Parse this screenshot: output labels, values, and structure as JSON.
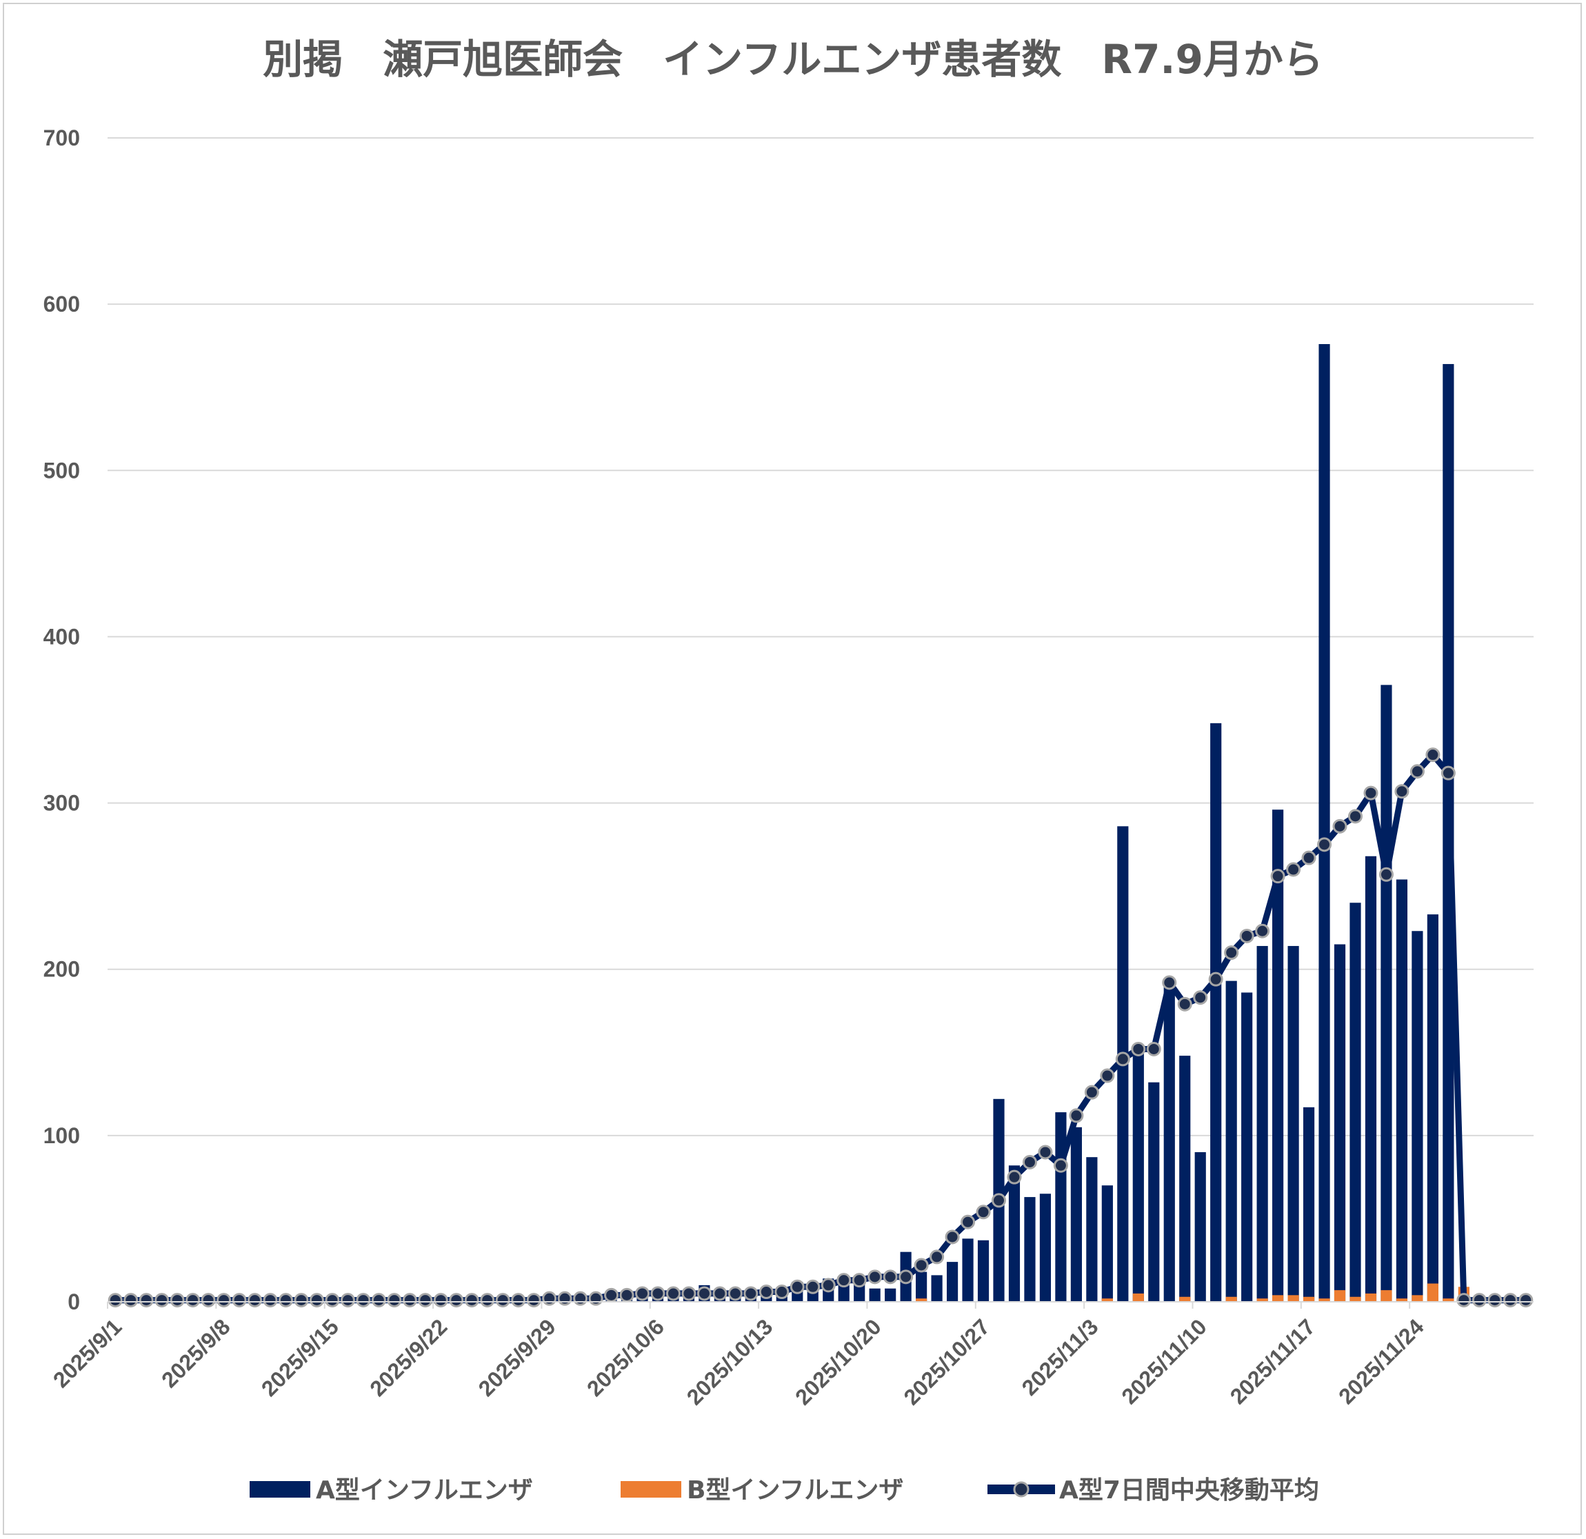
{
  "chart_data": {
    "type": "bar",
    "title": "別掲　瀬戸旭医師会　インフルエンザ患者数　R7.9月から",
    "xlabel": "",
    "ylabel": "",
    "ylim": [
      0,
      700
    ],
    "yticks": [
      "0",
      "100",
      "200",
      "300",
      "400",
      "500",
      "600",
      "700"
    ],
    "xticks": [
      {
        "index": 0,
        "label": "2025/9/1"
      },
      {
        "index": 7,
        "label": "2025/9/8"
      },
      {
        "index": 14,
        "label": "2025/9/15"
      },
      {
        "index": 21,
        "label": "2025/9/22"
      },
      {
        "index": 28,
        "label": "2025/9/29"
      },
      {
        "index": 35,
        "label": "2025/10/6"
      },
      {
        "index": 42,
        "label": "2025/10/13"
      },
      {
        "index": 49,
        "label": "2025/10/20"
      },
      {
        "index": 56,
        "label": "2025/10/27"
      },
      {
        "index": 63,
        "label": "2025/11/3"
      },
      {
        "index": 70,
        "label": "2025/11/10"
      },
      {
        "index": 77,
        "label": "2025/11/17"
      },
      {
        "index": 84,
        "label": "2025/11/24"
      }
    ],
    "x_start": "2025/9/1",
    "grid": true,
    "legend_position": "bottom",
    "series": [
      {
        "name": "A型インフルエンザ",
        "kind": "bar",
        "color": "#002060",
        "values": [
          0,
          1,
          0,
          1,
          0,
          1,
          0,
          1,
          0,
          1,
          2,
          1,
          1,
          2,
          1,
          2,
          1,
          2,
          1,
          2,
          1,
          1,
          2,
          1,
          1,
          2,
          1,
          2,
          3,
          2,
          3,
          2,
          4,
          5,
          4,
          6,
          5,
          4,
          10,
          6,
          5,
          6,
          7,
          5,
          12,
          9,
          14,
          10,
          12,
          8,
          8,
          30,
          18,
          16,
          24,
          38,
          37,
          122,
          82,
          63,
          65,
          114,
          105,
          87,
          70,
          286,
          152,
          132,
          192,
          148,
          90,
          348,
          193,
          186,
          214,
          296,
          214,
          117,
          576,
          215,
          240,
          268,
          371,
          254,
          223,
          233,
          564,
          0,
          0,
          0,
          0,
          0
        ]
      },
      {
        "name": "B型インフルエンザ",
        "kind": "bar",
        "color": "#ED7D31",
        "values": [
          0,
          0,
          0,
          0,
          0,
          0,
          0,
          0,
          0,
          0,
          0,
          0,
          0,
          0,
          0,
          0,
          0,
          0,
          0,
          0,
          0,
          0,
          0,
          0,
          0,
          0,
          0,
          0,
          0,
          0,
          0,
          0,
          0,
          0,
          0,
          0,
          0,
          0,
          0,
          0,
          0,
          0,
          0,
          0,
          0,
          0,
          0,
          0,
          0,
          0,
          0,
          0,
          2,
          0,
          0,
          0,
          0,
          0,
          0,
          0,
          0,
          0,
          0,
          0,
          2,
          0,
          5,
          0,
          0,
          3,
          0,
          0,
          3,
          0,
          2,
          4,
          4,
          3,
          2,
          7,
          3,
          5,
          7,
          2,
          4,
          11,
          2,
          9,
          0,
          0,
          0,
          0,
          0
        ]
      },
      {
        "name": "A型7日間中央移動平均",
        "kind": "line",
        "color": "#002060",
        "marker_color": "#1F2E4E",
        "marker_edge": "#A6A6A6",
        "values": [
          1,
          1,
          1,
          1,
          1,
          1,
          1,
          1,
          1,
          1,
          1,
          1,
          1,
          1,
          1,
          1,
          1,
          1,
          1,
          1,
          1,
          1,
          1,
          1,
          1,
          1,
          1,
          1,
          2,
          2,
          2,
          2,
          4,
          4,
          5,
          5,
          5,
          5,
          5,
          5,
          5,
          5,
          6,
          6,
          9,
          9,
          10,
          13,
          13,
          15,
          15,
          15,
          22,
          27,
          39,
          48,
          54,
          61,
          75,
          84,
          90,
          82,
          112,
          126,
          136,
          146,
          152,
          152,
          192,
          179,
          183,
          194,
          210,
          220,
          223,
          256,
          260,
          267,
          275,
          286,
          292,
          306,
          257,
          307,
          319,
          329,
          318,
          1,
          1,
          1,
          1,
          1
        ]
      }
    ]
  }
}
